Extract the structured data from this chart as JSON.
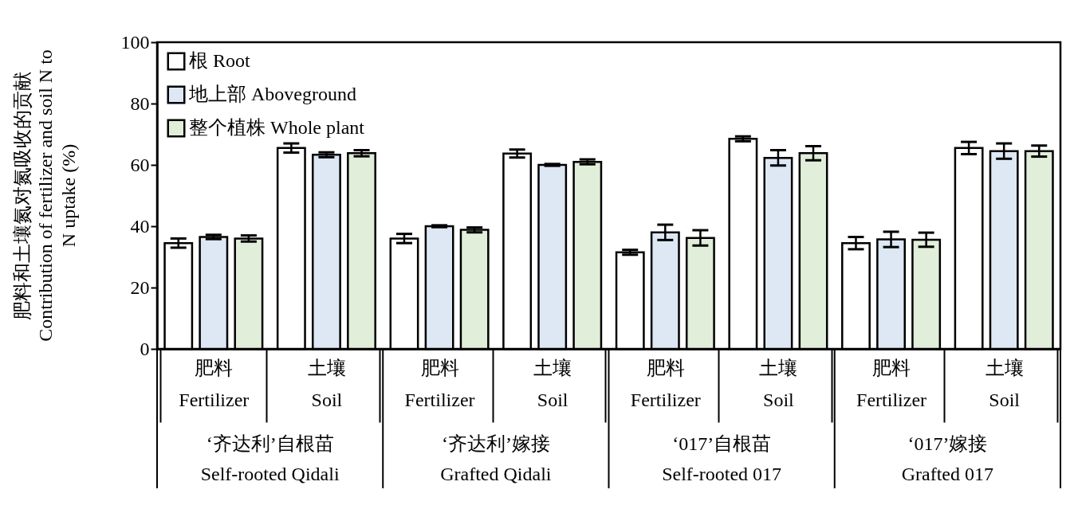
{
  "chart_data": {
    "type": "bar",
    "ylabel": "肥料和土壤氮对氮吸收的贡献\nContribution of fertilizer and soil N to\nN uptake (%)",
    "categories": [
      "肥料\nFertilizer",
      "土壤\nSoil",
      "肥料\nFertilizer",
      "土壤\nSoil",
      "肥料\nFertilizer",
      "土壤\nSoil",
      "肥料\nFertilizer",
      "土壤\nSoil"
    ],
    "annotations": [
      "‘齐达利’自根苗\nSelf-rooted Qidali",
      "‘齐达利’嫁接\nGrafted Qidali",
      "‘017’自根苗\nSelf-rooted 017",
      "‘017’嫁接\nGrafted 017"
    ],
    "series": [
      {
        "name": "根 Root",
        "color": "#ffffff",
        "values": [
          34.5,
          65.5,
          36,
          63.7,
          31.5,
          68.5,
          34.5,
          65.5
        ],
        "errors": [
          1.5,
          1.5,
          1.5,
          1.3,
          0.8,
          0.8,
          2,
          2
        ]
      },
      {
        "name": "地上部 Aboveground",
        "color": "#dde8f4",
        "values": [
          36.5,
          63.3,
          40,
          60,
          38,
          62.3,
          35.7,
          64.5
        ],
        "errors": [
          0.7,
          0.8,
          0.3,
          0.3,
          2.5,
          2.5,
          2.5,
          2.5
        ]
      },
      {
        "name": "整个植株 Whole plant",
        "color": "#e1eed9",
        "values": [
          36,
          63.8,
          38.8,
          61,
          36.2,
          63.8,
          35.6,
          64.5
        ],
        "errors": [
          1,
          1,
          0.8,
          0.8,
          2.5,
          2.3,
          2.3,
          1.8
        ]
      }
    ],
    "ylim": [
      0,
      100
    ],
    "yticks": [
      0,
      20,
      40,
      60,
      80,
      100
    ],
    "legend": "top left"
  }
}
